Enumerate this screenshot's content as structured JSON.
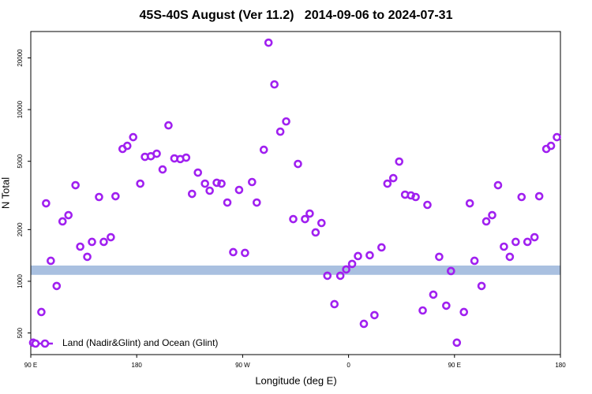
{
  "chart_data": {
    "type": "scatter",
    "title": "45S-40S August (Ver 11.2)   2014-09-06 to 2024-07-31",
    "x_label": "Longitude (deg E)",
    "y_label": "N Total",
    "xlim": [
      90,
      540
    ],
    "ylim": [
      374,
      28500
    ],
    "y_log": true,
    "xticks": [
      {
        "value": 90,
        "label": "90 E"
      },
      180,
      {
        "value": 270,
        "label": "90 W"
      },
      {
        "value": 360,
        "label": "0"
      },
      {
        "value": 450,
        "label": "90 E"
      },
      {
        "value": 540,
        "label": "180"
      }
    ],
    "yticks": [
      500,
      1000,
      2000,
      5000,
      10000,
      20000
    ],
    "shaded_band": {
      "ylim": [
        1090,
        1235
      ],
      "color": "#a9c0e0"
    },
    "legend": "bottom-left",
    "series": [
      {
        "name": "Land (Nadir&Glint) and Ocean (Glint)",
        "color": "#a020f0",
        "x": [
          92,
          99,
          103,
          107,
          112,
          117,
          122,
          128,
          132,
          138,
          142,
          148,
          152,
          158,
          162,
          168,
          172,
          177,
          183,
          187,
          192,
          197,
          202,
          207,
          212,
          217,
          222,
          227,
          232,
          238,
          242,
          248,
          252,
          257,
          262,
          267,
          272,
          278,
          282,
          288,
          292,
          297,
          302,
          307,
          313,
          317,
          323,
          327,
          332,
          337,
          342,
          348,
          353,
          358,
          363,
          368,
          373,
          378,
          382,
          388,
          393,
          398,
          403,
          408,
          413,
          417,
          423,
          427,
          432,
          437,
          443,
          447,
          452,
          458,
          463,
          467,
          473,
          477,
          482,
          487,
          492,
          497,
          502,
          507,
          512,
          518,
          522,
          528,
          532,
          537
        ],
        "values": [
          439,
          662,
          2845,
          1316,
          939,
          2232,
          2428,
          3628,
          1591,
          1388,
          1696,
          3097,
          1696,
          1806,
          3129,
          5900,
          6150,
          6910,
          3705,
          5307,
          5350,
          5535,
          4480,
          8094,
          5196,
          5150,
          5250,
          3230,
          4296,
          3705,
          3370,
          3750,
          3705,
          2875,
          1478,
          3405,
          1463,
          3785,
          2875,
          5835,
          24540,
          14020,
          7440,
          8530,
          2303,
          4825,
          2303,
          2480,
          1925,
          2185,
          1077,
          736,
          1077,
          1172,
          1262,
          1402,
          565,
          1418,
          635,
          1575,
          3705,
          3990,
          4980,
          3196,
          3163,
          3097,
          676,
          2786,
          836,
          1388,
          721,
          1147,
          439,
          662,
          2845,
          1316,
          939,
          2232,
          2428,
          3628,
          1591,
          1388,
          1696,
          3097,
          1696,
          1806,
          3129,
          5900,
          6150,
          6910
        ]
      }
    ]
  }
}
